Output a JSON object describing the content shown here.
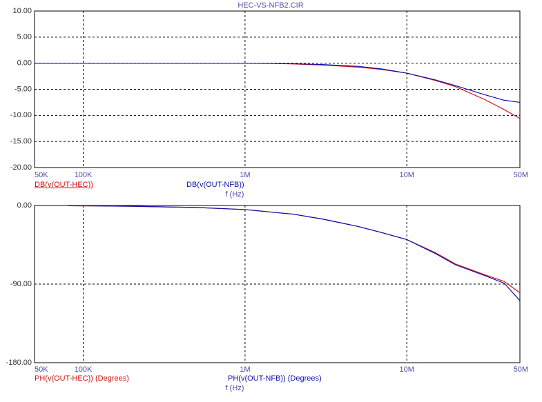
{
  "chart_data": [
    {
      "type": "line",
      "title": "HEC-VS-NFB2.CIR",
      "x_label": "f (Hz)",
      "xscale": "log",
      "grid": true,
      "x": [
        50000,
        100000,
        200000,
        500000,
        1000000,
        1500000,
        2000000,
        3000000,
        5000000,
        7000000,
        10000000,
        15000000,
        20000000,
        30000000,
        40000000,
        50000000
      ],
      "xlim": [
        50000,
        50000000
      ],
      "xticks": [
        {
          "value": 50000,
          "label": "50K"
        },
        {
          "value": 100000,
          "label": "100K"
        },
        {
          "value": 1000000,
          "label": "1M"
        },
        {
          "value": 10000000,
          "label": "10M"
        },
        {
          "value": 50000000,
          "label": "50M"
        }
      ],
      "ylim": [
        -20,
        10
      ],
      "yticks": [
        {
          "value": 10,
          "label": "10.00"
        },
        {
          "value": 5,
          "label": "5.00"
        },
        {
          "value": 0,
          "label": "0.00"
        },
        {
          "value": -5,
          "label": "-5.00"
        },
        {
          "value": -10,
          "label": "-10.00"
        },
        {
          "value": -15,
          "label": "-15.00"
        },
        {
          "value": -20,
          "label": "-20.00"
        }
      ],
      "series": [
        {
          "name": "DB(v(OUT-HEC))",
          "color": "#d01010",
          "values": [
            null,
            null,
            null,
            null,
            null,
            -0.05,
            -0.15,
            -0.35,
            -0.75,
            -1.2,
            -1.9,
            -3.3,
            -4.5,
            -6.9,
            -8.9,
            -10.6
          ]
        },
        {
          "name": "DB(v(OUT-NFB))",
          "color": "#1010b0",
          "values": [
            0,
            0,
            0,
            0,
            0,
            -0.05,
            -0.1,
            -0.25,
            -0.6,
            -1.1,
            -1.9,
            -3.2,
            -4.3,
            -6.0,
            -7.1,
            -7.5
          ]
        }
      ]
    },
    {
      "type": "line",
      "x_label": "f (Hz)",
      "xscale": "log",
      "grid": true,
      "x": [
        80000,
        100000,
        200000,
        500000,
        1000000,
        2000000,
        3000000,
        5000000,
        7000000,
        10000000,
        15000000,
        20000000,
        30000000,
        40000000,
        50000000
      ],
      "xlim": [
        50000,
        50000000
      ],
      "xticks": [
        {
          "value": 50000,
          "label": "50K"
        },
        {
          "value": 100000,
          "label": "100K"
        },
        {
          "value": 1000000,
          "label": "1M"
        },
        {
          "value": 10000000,
          "label": "10M"
        },
        {
          "value": 50000000,
          "label": "50M"
        }
      ],
      "ylim": [
        -180,
        0
      ],
      "yticks": [
        {
          "value": 0,
          "label": "0.00"
        },
        {
          "value": -90,
          "label": "-90.00"
        },
        {
          "value": -180,
          "label": "-180.00"
        }
      ],
      "series": [
        {
          "name": "PH(v(OUT-HEC)) (Degrees)",
          "color": "#d01010",
          "values": [
            -0.3,
            -0.4,
            -0.9,
            -2.3,
            -4.7,
            -10,
            -15.5,
            -24,
            -31,
            -39,
            -54,
            -67,
            -79,
            -87,
            -100
          ]
        },
        {
          "name": "PH(v(OUT-NFB)) (Degrees)",
          "color": "#1010b0",
          "values": [
            -0.3,
            -0.4,
            -0.9,
            -2.3,
            -4.7,
            -10,
            -15.5,
            -24,
            -31,
            -39,
            -55,
            -68,
            -80,
            -89,
            -109
          ]
        }
      ]
    }
  ]
}
